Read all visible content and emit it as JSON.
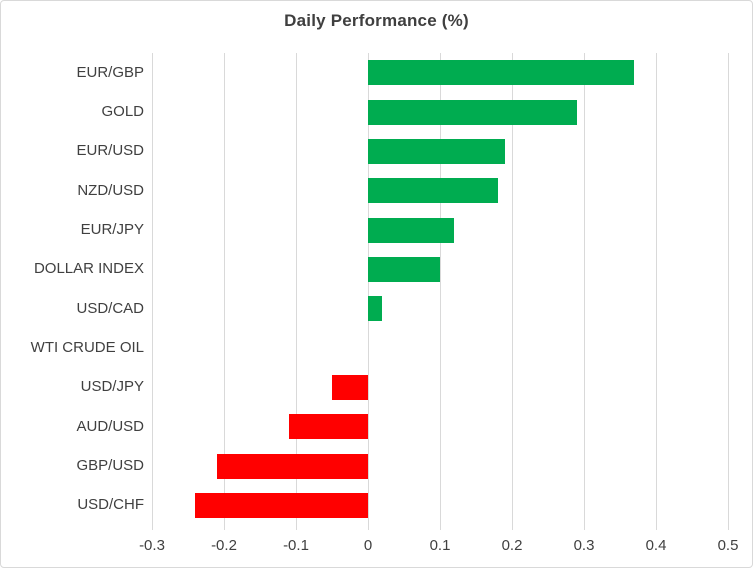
{
  "title": "Daily Performance (%)",
  "colors": {
    "positive_bar": "#00AC50",
    "negative_bar": "#FF0000",
    "gridline": "#D9D9D9",
    "tick_mark": "#D9D9D9",
    "axis_text": "#404040",
    "title_text": "#3F3F3F",
    "border": "#D9D9D9",
    "background": "#FFFFFF"
  },
  "chart_data": {
    "type": "bar",
    "orientation": "horizontal",
    "title": "Daily Performance (%)",
    "categories": [
      "EUR/GBP",
      "GOLD",
      "EUR/USD",
      "NZD/USD",
      "EUR/JPY",
      "DOLLAR INDEX",
      "USD/CAD",
      "WTI CRUDE OIL",
      "USD/JPY",
      "AUD/USD",
      "GBP/USD",
      "USD/CHF"
    ],
    "values": [
      0.37,
      0.29,
      0.19,
      0.18,
      0.12,
      0.1,
      0.02,
      0.0,
      -0.05,
      -0.11,
      -0.21,
      -0.24
    ],
    "xlabel": "",
    "ylabel": "",
    "xlim": [
      -0.3,
      0.5
    ],
    "x_tick_values": [
      -0.3,
      -0.2,
      -0.1,
      0,
      0.1,
      0.2,
      0.3,
      0.4,
      0.5
    ],
    "x_tick_labels": [
      "-0.3",
      "-0.2",
      "-0.1",
      "0",
      "0.1",
      "0.2",
      "0.3",
      "0.4",
      "0.5"
    ],
    "grid": "vertical-only",
    "legend": "none",
    "bar_color_rule": "green if positive, red if negative"
  }
}
